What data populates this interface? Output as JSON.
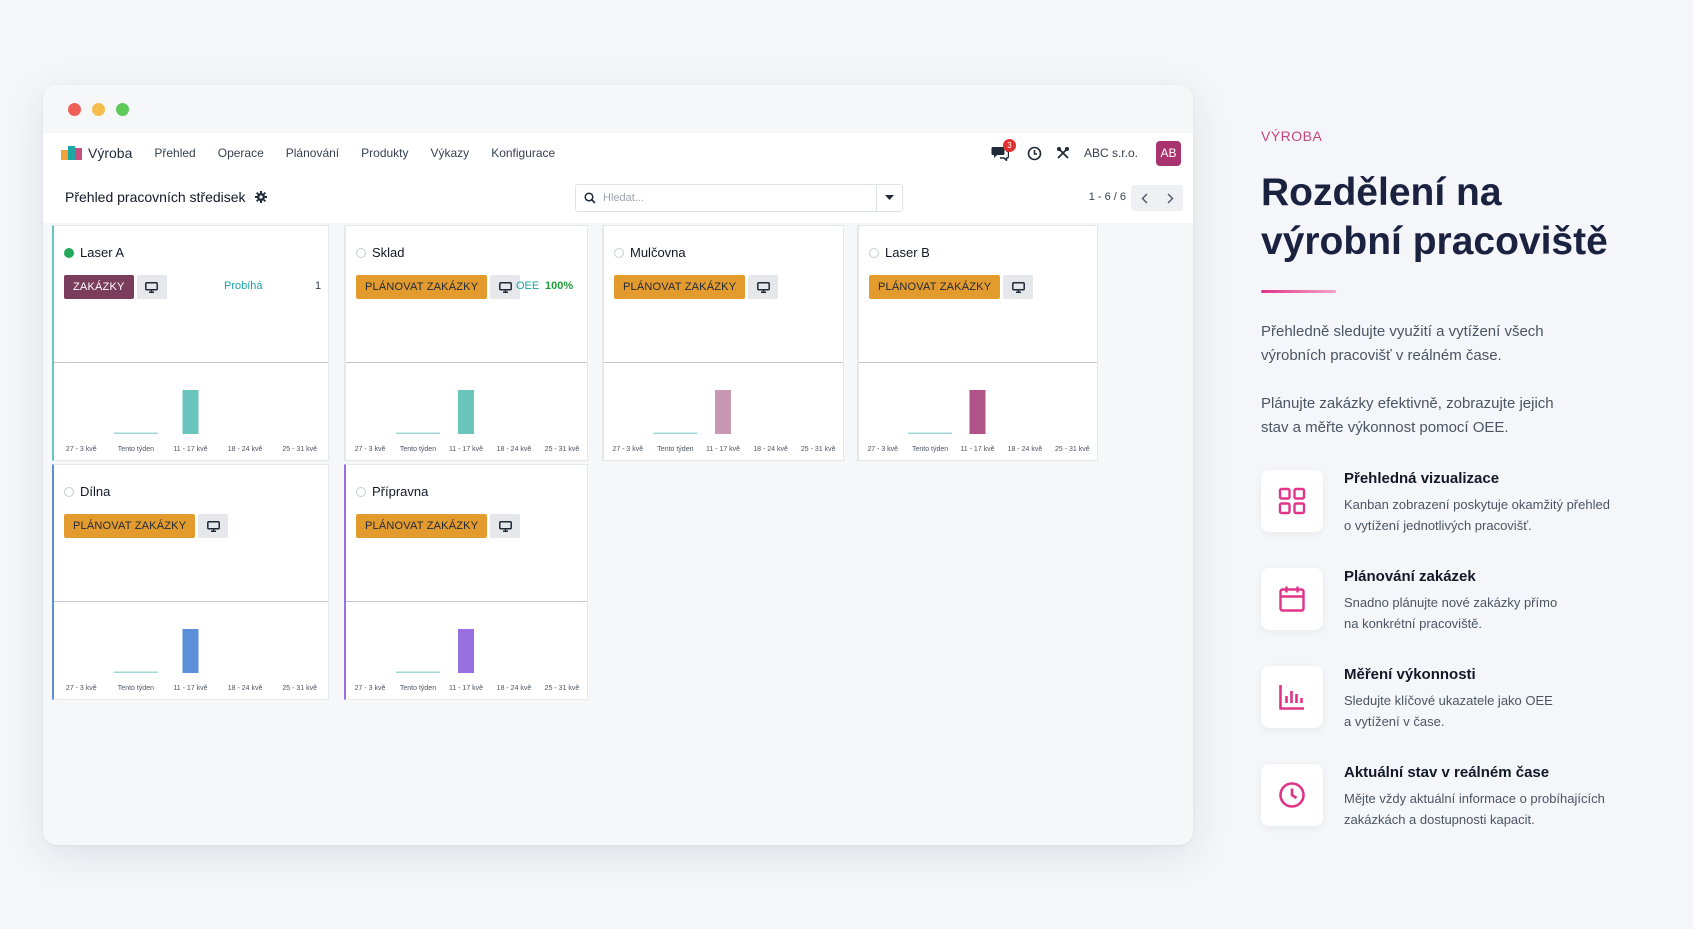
{
  "window": {
    "brand": "Výroba",
    "nav": [
      "Přehled",
      "Operace",
      "Plánování",
      "Produkty",
      "Výkazy",
      "Konfigurace"
    ],
    "notification_count": "3",
    "company": "ABC s.r.o.",
    "avatar_initials": "AB",
    "page_title": "Přehled pracovních středisek",
    "search_placeholder": "Hledat...",
    "pager": "1 - 6 / 6"
  },
  "chart_labels": [
    "27 - 3 kvě",
    "Tento týden",
    "11 - 17 kvě",
    "18 - 24 kvě",
    "25 - 31 kvě"
  ],
  "cards": [
    {
      "name": "Laser A",
      "active": true,
      "button": "ZAKÁZKY",
      "button_style": "plum",
      "kpi_label": "Probíhá",
      "kpi_value": "1",
      "accent": "#69c5be",
      "bar_color": "#69c5be",
      "chart_data": {
        "type": "bar",
        "categories": [
          "27 - 3 kvě",
          "Tento týden",
          "11 - 17 kvě",
          "18 - 24 kvě",
          "25 - 31 kvě"
        ],
        "values": [
          0,
          0.05,
          1,
          0,
          0
        ]
      }
    },
    {
      "name": "Sklad",
      "active": false,
      "button": "PLÁNOVAT ZAKÁZKY",
      "button_style": "orange",
      "kpi_label": "OEE",
      "kpi_value": "100%",
      "accent": "#e5e7eb",
      "bar_color": "#69c5be",
      "chart_data": {
        "type": "bar",
        "categories": [
          "27 - 3 kvě",
          "Tento týden",
          "11 - 17 kvě",
          "18 - 24 kvě",
          "25 - 31 kvě"
        ],
        "values": [
          0,
          0.05,
          1,
          0,
          0
        ]
      }
    },
    {
      "name": "Mulčovna",
      "active": false,
      "button": "PLÁNOVAT ZAKÁZKY",
      "button_style": "orange",
      "kpi_label": "",
      "kpi_value": "",
      "accent": "#e5e7eb",
      "bar_color": "#c897b1",
      "chart_data": {
        "type": "bar",
        "categories": [
          "27 - 3 kvě",
          "Tento týden",
          "11 - 17 kvě",
          "18 - 24 kvě",
          "25 - 31 kvě"
        ],
        "values": [
          0,
          0.05,
          1,
          0,
          0
        ]
      }
    },
    {
      "name": "Laser B",
      "active": false,
      "button": "PLÁNOVAT ZAKÁZKY",
      "button_style": "orange",
      "kpi_label": "",
      "kpi_value": "",
      "accent": "#e5e7eb",
      "bar_color": "#b0538a",
      "chart_data": {
        "type": "bar",
        "categories": [
          "27 - 3 kvě",
          "Tento týden",
          "11 - 17 kvě",
          "18 - 24 kvě",
          "25 - 31 kvě"
        ],
        "values": [
          0,
          0.05,
          1,
          0,
          0
        ]
      }
    },
    {
      "name": "Dílna",
      "active": false,
      "button": "PLÁNOVAT ZAKÁZKY",
      "button_style": "orange",
      "kpi_label": "",
      "kpi_value": "",
      "accent": "#5b8fd8",
      "bar_color": "#5b8fd8",
      "chart_data": {
        "type": "bar",
        "categories": [
          "27 - 3 kvě",
          "Tento týden",
          "11 - 17 kvě",
          "18 - 24 kvě",
          "25 - 31 kvě"
        ],
        "values": [
          0,
          0.05,
          1,
          0,
          0
        ]
      }
    },
    {
      "name": "Přípravna",
      "active": false,
      "button": "PLÁNOVAT ZAKÁZKY",
      "button_style": "orange",
      "kpi_label": "",
      "kpi_value": "",
      "accent": "#9a6fe0",
      "bar_color": "#9a6fe0",
      "chart_data": {
        "type": "bar",
        "categories": [
          "27 - 3 kvě",
          "Tento týden",
          "11 - 17 kvě",
          "18 - 24 kvě",
          "25 - 31 kvě"
        ],
        "values": [
          0,
          0.05,
          1,
          0,
          0
        ]
      }
    }
  ],
  "side": {
    "eyebrow": "VÝROBA",
    "headline_1": "Rozdělení na",
    "headline_2": "výrobní pracoviště",
    "para1_line1": "Přehledně sledujte využití a vytížení všech",
    "para1_line2": "výrobních pracovišť v reálném čase.",
    "para2_line1": "Plánujte zakázky efektivně, zobrazujte jejich",
    "para2_line2": "stav a měřte výkonnost pomocí OEE.",
    "accent_color": "#e0338a",
    "features": [
      {
        "icon": "grid-icon",
        "title": "Přehledná vizualizace",
        "desc_1": "Kanban zobrazení poskytuje okamžitý přehled",
        "desc_2": "o vytížení jednotlivých pracovišť."
      },
      {
        "icon": "calendar-icon",
        "title": "Plánování zakázek",
        "desc_1": "Snadno plánujte nové zakázky přímo",
        "desc_2": "na konkrétní pracoviště."
      },
      {
        "icon": "bar-chart-icon",
        "title": "Měření výkonnosti",
        "desc_1": "Sledujte klíčové ukazatele jako OEE",
        "desc_2": "a vytížení v čase."
      },
      {
        "icon": "clock-icon",
        "title": "Aktuální stav v reálném čase",
        "desc_1": "Mějte vždy aktuální informace o probíhajících",
        "desc_2": "zakázkách a dostupnosti kapacit."
      }
    ]
  }
}
